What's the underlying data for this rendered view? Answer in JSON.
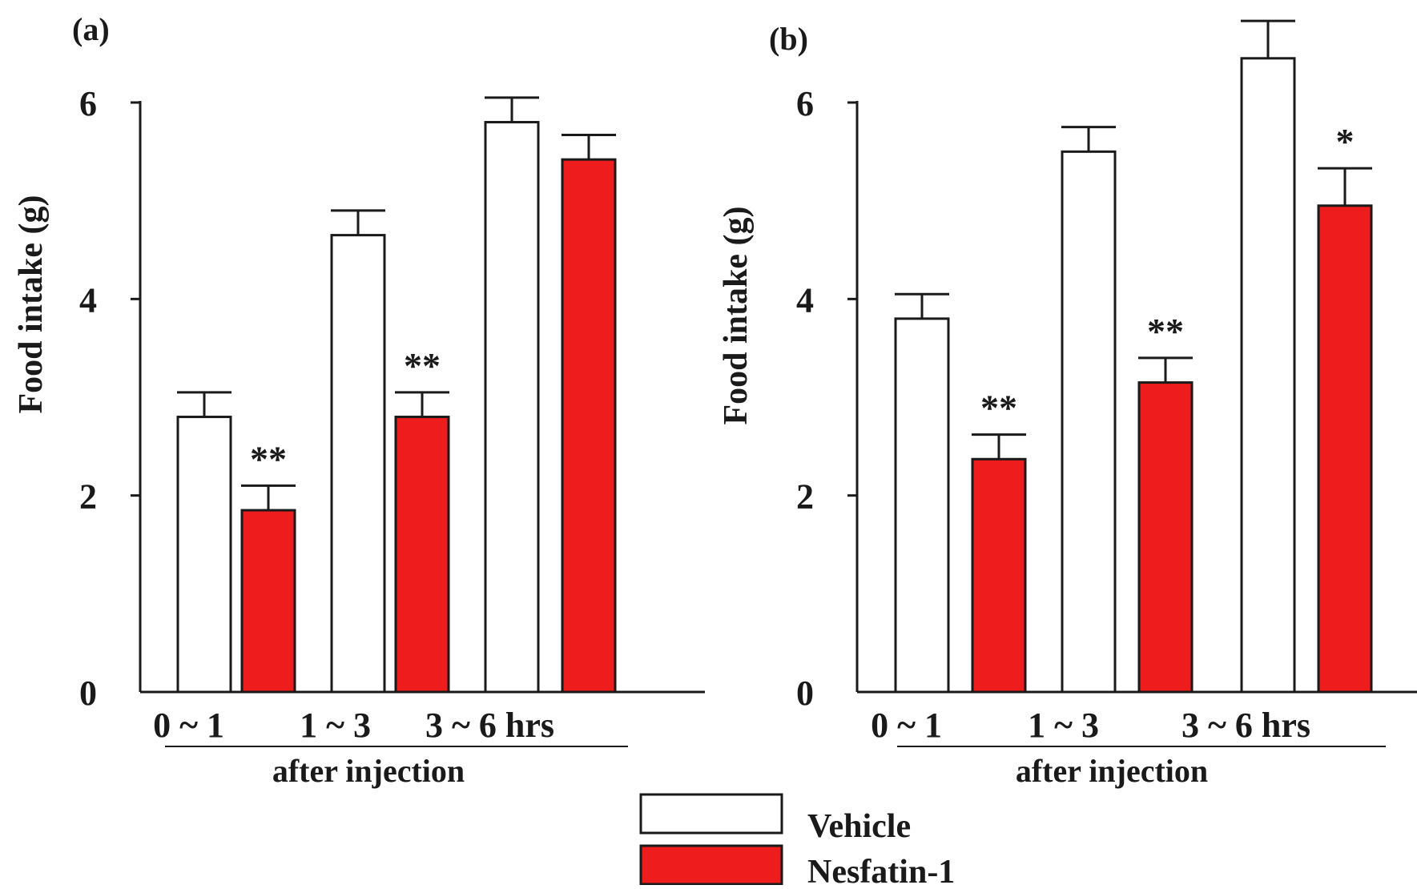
{
  "chart_data": [
    {
      "panel_label": "(a)",
      "type": "bar",
      "categories": [
        "0 ~ 1",
        "1 ~ 3",
        "3 ~ 6 hrs"
      ],
      "ylabel": "Food intake (g)",
      "xlabel": "after injection",
      "yticks": [
        0,
        2,
        4,
        6
      ],
      "ylim": [
        0,
        6
      ],
      "series": [
        {
          "name": "Vehicle",
          "color": "#ffffff",
          "values": [
            2.8,
            4.65,
            5.8
          ],
          "errors": [
            0.25,
            0.25,
            0.25
          ]
        },
        {
          "name": "Nesfatin-1",
          "color": "#ee1c1c",
          "values": [
            1.85,
            2.8,
            5.42
          ],
          "errors": [
            0.25,
            0.25,
            0.25
          ]
        }
      ],
      "annotations": [
        {
          "series": 1,
          "category": 0,
          "text": "**"
        },
        {
          "series": 1,
          "category": 1,
          "text": "**"
        }
      ]
    },
    {
      "panel_label": "(b)",
      "type": "bar",
      "categories": [
        "0 ~ 1",
        "1 ~ 3",
        "3 ~ 6 hrs"
      ],
      "ylabel": "Food intake (g)",
      "xlabel": "after injection",
      "yticks": [
        0,
        2,
        4,
        6
      ],
      "ylim": [
        0,
        6
      ],
      "series": [
        {
          "name": "Vehicle",
          "color": "#ffffff",
          "values": [
            3.8,
            5.5,
            6.45
          ],
          "errors": [
            0.25,
            0.25,
            0.38
          ]
        },
        {
          "name": "Nesfatin-1",
          "color": "#ee1c1c",
          "values": [
            2.37,
            3.15,
            4.95
          ],
          "errors": [
            0.25,
            0.25,
            0.38
          ]
        }
      ],
      "annotations": [
        {
          "series": 1,
          "category": 0,
          "text": "**"
        },
        {
          "series": 1,
          "category": 1,
          "text": "**"
        },
        {
          "series": 1,
          "category": 2,
          "text": "*"
        }
      ]
    }
  ],
  "legend": {
    "items": [
      {
        "label": "Vehicle",
        "color": "#ffffff"
      },
      {
        "label": "Nesfatin-1",
        "color": "#ee1c1c"
      }
    ]
  }
}
